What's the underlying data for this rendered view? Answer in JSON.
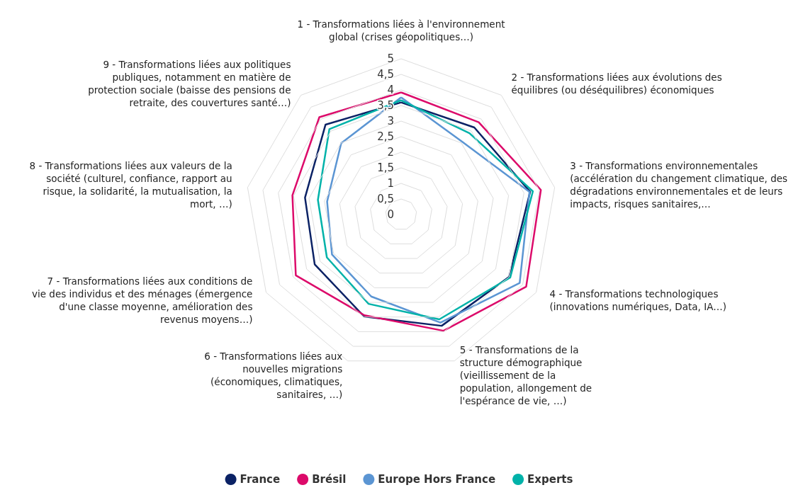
{
  "chart_data": {
    "type": "radar",
    "categories": [
      "1 - Transformations liées à l'environnement global (crises géopolitiques…)",
      "2 - Transformations liées aux évolutions des équilibres (ou déséquilibres) économiques",
      "3 - Transformations environnementales (accélération du changement climatique, des dégradations environnementales et de leurs impacts, risques sanitaires,…",
      "4 - Transformations technologiques (innovations numériques, Data, IA…)",
      "5 - Transformations de la structure démographique (vieillissement de la population, allongement de l'espérance de vie, …)",
      "6 - Transformations liées aux nouvelles migrations (économiques, climatiques, sanitaires, …)",
      "7 - Transformations liées aux conditions de vie des individus et des ménages (émergence d'une classe moyenne, amélioration des revenus moyens…)",
      "8 - Transformations liées aux valeurs de la société (culturel, confiance, rapport au risque, la solidarité, la mutualisation, la mort, …)",
      "9 - Transformations liées aux politiques publiques, notamment en matière de protection sociale (baisse des pensions de retraite, des couvertures santé…)"
    ],
    "series": [
      {
        "name": "France",
        "color": "#0b2265",
        "values": [
          3.6,
          3.65,
          4.2,
          4.0,
          3.8,
          3.48,
          3.2,
          3.13,
          3.77
        ]
      },
      {
        "name": "Brésil",
        "color": "#dc0a6a",
        "values": [
          3.92,
          3.87,
          4.55,
          4.63,
          3.97,
          3.44,
          3.9,
          3.54,
          4.08
        ]
      },
      {
        "name": "Europe Hors France",
        "color": "#5b95d3",
        "values": [
          3.76,
          3.05,
          4.18,
          4.39,
          3.69,
          2.8,
          2.56,
          2.41,
          2.99
        ]
      },
      {
        "name": "Experts",
        "color": "#00b2a9",
        "values": [
          3.67,
          3.41,
          4.29,
          4.04,
          3.58,
          3.05,
          2.75,
          2.71,
          3.58
        ]
      }
    ],
    "ylim": [
      0,
      5
    ],
    "yticks": [
      0,
      {
        "value": 0.5,
        "label": "0,5"
      },
      1,
      {
        "value": 1.5,
        "label": "1,5"
      },
      2,
      {
        "value": 2.5,
        "label": "2,5"
      },
      3,
      {
        "value": 3.5,
        "label": "3,5"
      },
      4,
      {
        "value": 4.5,
        "label": "4,5"
      },
      5
    ],
    "grid": true,
    "legend": "bottom",
    "marker": "none",
    "line_style": "solid"
  }
}
